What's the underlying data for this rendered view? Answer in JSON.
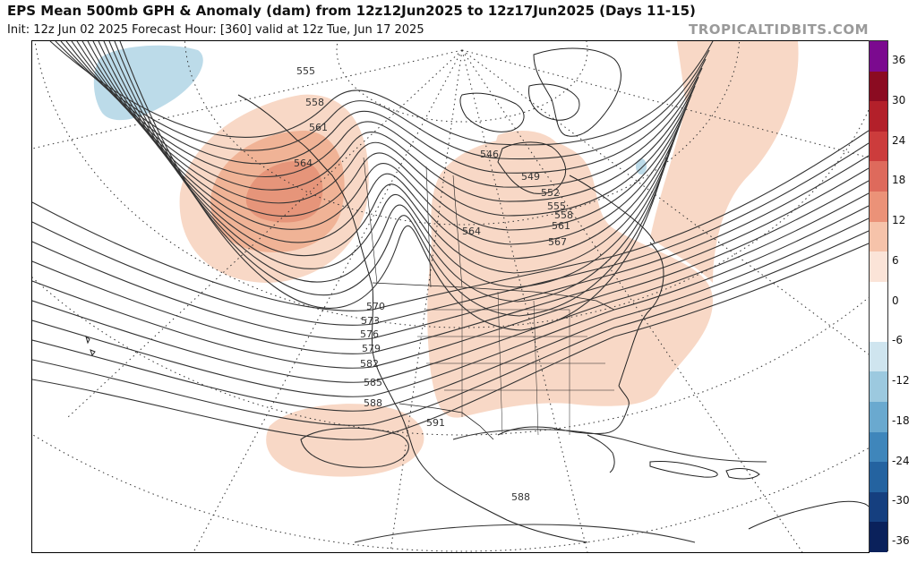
{
  "header": {
    "title": "EPS Mean 500mb GPH & Anomaly (dam) from 12z12Jun2025 to 12z17Jun2025 (Days 11-15)",
    "subtitle": "Init: 12z Jun 02 2025   Forecast Hour: [360]   valid at 12z Tue, Jun 17 2025",
    "brand": "TROPICALTIDBITS.COM"
  },
  "map": {
    "contour_labels": [
      "555",
      "558",
      "561",
      "564",
      "546",
      "549",
      "552",
      "555",
      "558",
      "561",
      "564",
      "567",
      "570",
      "573",
      "576",
      "579",
      "582",
      "585",
      "588",
      "591",
      "588"
    ],
    "colors": {
      "land": "#ffffff",
      "ocean": "#ffffff",
      "coast": "#222222",
      "contour": "#333333",
      "pos_light": "#f8d8c6",
      "pos_mid": "#f0b396",
      "pos_strong": "#e6957a",
      "neg_light": "#bcdbe9"
    }
  },
  "colorbar": {
    "labels": [
      "36",
      "30",
      "24",
      "18",
      "12",
      "6",
      "0",
      "-6",
      "-12",
      "-18",
      "-24",
      "-30",
      "-36"
    ],
    "colors": [
      "#7b0a8f",
      "#8b0b21",
      "#b3202a",
      "#cc3c3c",
      "#de6a5c",
      "#eb9278",
      "#f6c3aa",
      "#fbe4d8",
      "#ffffff",
      "#ffffff",
      "#cfe5ef",
      "#9cc9df",
      "#6aa9cf",
      "#3f86bb",
      "#2463a0",
      "#153f7f",
      "#0a215b"
    ]
  }
}
